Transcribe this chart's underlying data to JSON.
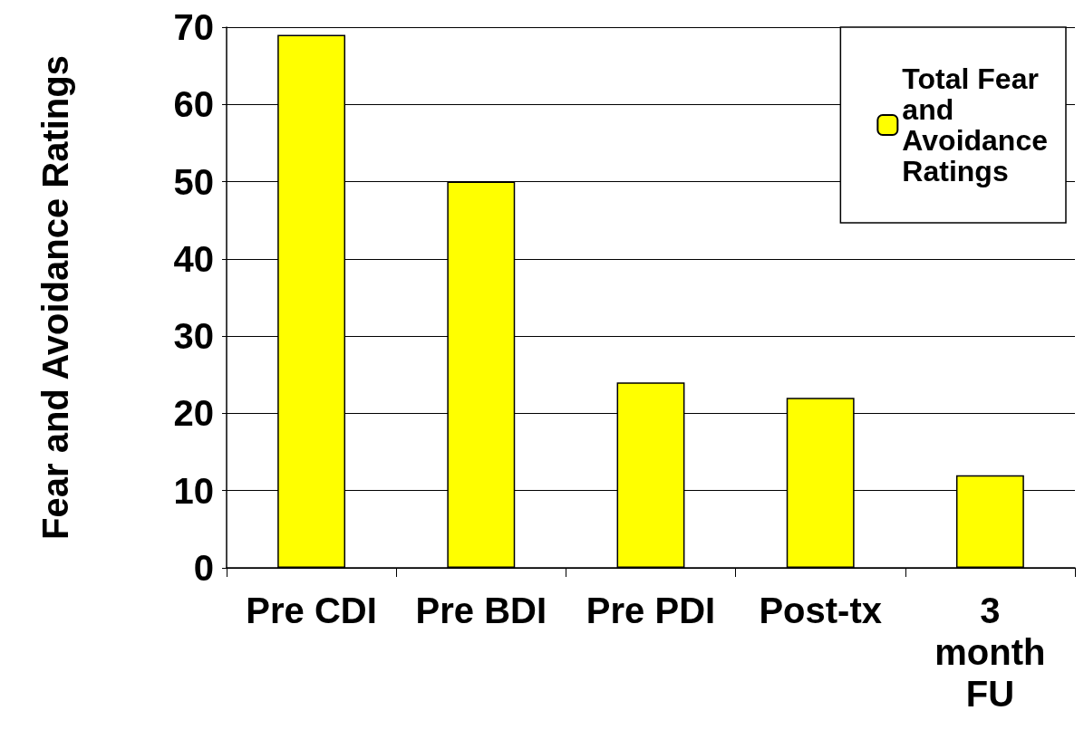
{
  "chart_data": {
    "type": "bar",
    "ylabel": "Fear and Avoidance Ratings",
    "categories": [
      "Pre CDI",
      "Pre BDI",
      "Pre PDI",
      "Post-tx",
      "3 month FU"
    ],
    "series": [
      {
        "name": "Total Fear and Avoidance Ratings",
        "color": "#ffff00",
        "values": [
          69,
          50,
          24,
          22,
          12
        ]
      }
    ],
    "ylim": [
      0,
      70
    ],
    "yticks": [
      0,
      10,
      20,
      30,
      40,
      50,
      60,
      70
    ],
    "grid": "y",
    "legend": "top right"
  }
}
